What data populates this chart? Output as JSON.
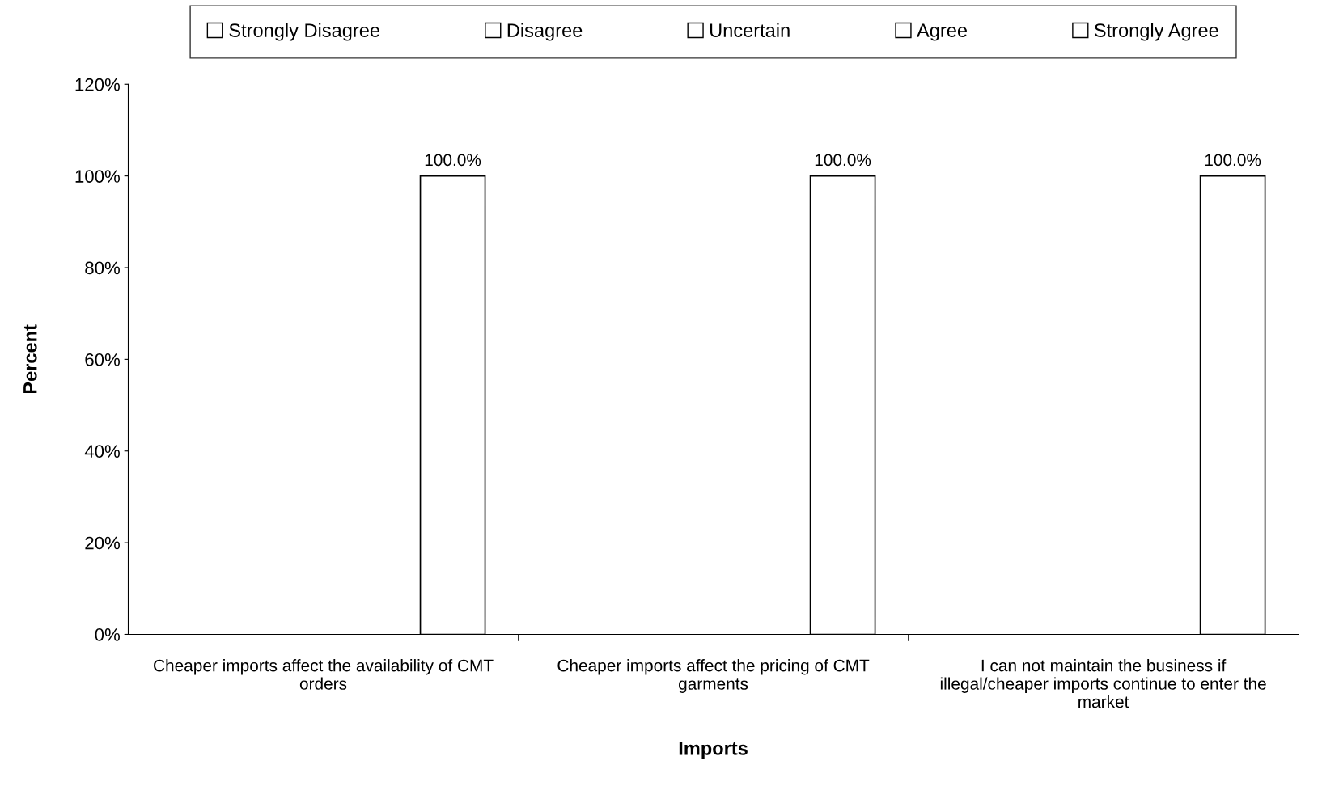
{
  "chart_data": {
    "type": "bar",
    "xlabel": "Imports",
    "ylabel": "Percent",
    "categories": [
      "Cheaper imports affect the availability of CMT orders",
      "Cheaper imports affect the pricing of CMT garments",
      "I can not maintain the business if illegal/cheaper imports continue to enter the market"
    ],
    "series": [
      {
        "name": "Strongly Disagree",
        "color": "#ffffff",
        "values": [
          null,
          null,
          null
        ]
      },
      {
        "name": "Disagree",
        "color": "#ffffff",
        "values": [
          null,
          null,
          null
        ]
      },
      {
        "name": "Uncertain",
        "color": "#ffffff",
        "values": [
          null,
          null,
          null
        ]
      },
      {
        "name": "Agree",
        "color": "#ffffff",
        "values": [
          null,
          null,
          null
        ]
      },
      {
        "name": "Strongly Agree",
        "color": "#ffffff",
        "values": [
          100,
          100,
          100
        ],
        "value_labels": [
          "100.0%",
          "100.0%",
          "100.0%"
        ]
      }
    ],
    "ylim": [
      0,
      120
    ],
    "yticks": [
      {
        "value": 0,
        "label": "0%"
      },
      {
        "value": 20,
        "label": "20%"
      },
      {
        "value": 40,
        "label": "40%"
      },
      {
        "value": 60,
        "label": "60%"
      },
      {
        "value": 80,
        "label": "80%"
      },
      {
        "value": 100,
        "label": "100%"
      },
      {
        "value": 120,
        "label": "120%"
      }
    ],
    "legend": "top",
    "grid": false
  }
}
